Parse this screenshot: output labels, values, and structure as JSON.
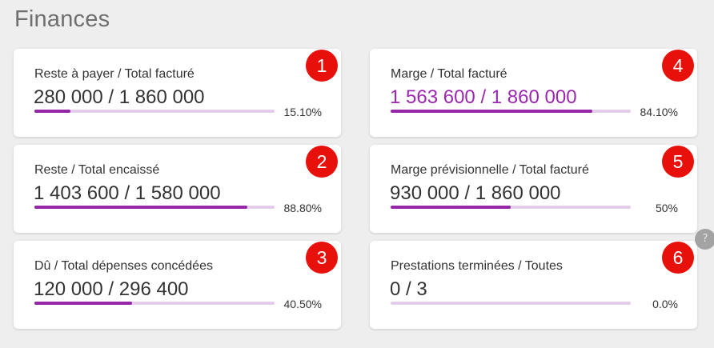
{
  "page": {
    "title": "Finances"
  },
  "cards": [
    {
      "number": "1",
      "label": "Reste à payer / Total facturé",
      "value": "280 000 / 1 860 000",
      "percent_text": "15.10%",
      "progress": 0.151
    },
    {
      "number": "2",
      "label": "Reste / Total encaissé",
      "value": "1 403 600 / 1 580 000",
      "percent_text": "88.80%",
      "progress": 0.888
    },
    {
      "number": "3",
      "label": "Dû / Total dépenses concédées",
      "value": "120 000 / 296 400",
      "percent_text": "40.50%",
      "progress": 0.405
    },
    {
      "number": "4",
      "label": "Marge / Total facturé",
      "value": "1 563 600 / 1 860 000",
      "percent_text": "84.10%",
      "progress": 0.841
    },
    {
      "number": "5",
      "label": "Marge prévisionnelle / Total facturé",
      "value": "930 000 / 1 860 000",
      "percent_text": "50%",
      "progress": 0.5
    },
    {
      "number": "6",
      "label": "Prestations terminées / Toutes",
      "value": "0 / 3",
      "percent_text": "0.0%",
      "progress": 0.0
    }
  ],
  "help_button": {
    "icon": "question-mark-icon",
    "glyph": "?"
  },
  "colors": {
    "accent": "#9c27b0",
    "progress_fill": "#9427a6",
    "progress_track": "#e4cdea",
    "badge": "#e8100a"
  }
}
